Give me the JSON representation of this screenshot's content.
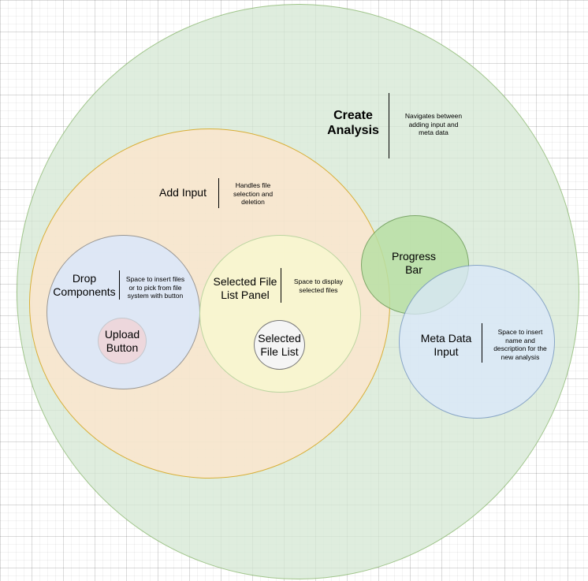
{
  "colors": {
    "create_analysis_fill": "#d5e8d4",
    "create_analysis_stroke": "#82b366",
    "add_input_fill": "#ffe6cc",
    "add_input_stroke": "#d79b00",
    "drop_components_fill": "#dae8fc",
    "selected_panel_fill": "#f9f7d0",
    "selected_list_fill": "#f5f5f5",
    "upload_fill": "#f8cecc",
    "progress_fill": "#b9e0a5",
    "meta_fill": "#dae8fc",
    "meta_stroke": "#6c8ebf"
  },
  "nodes": {
    "create_analysis": {
      "title_lines": [
        "Create",
        "Analysis"
      ],
      "desc_lines": [
        "Navigates between",
        "adding input and",
        "meta data"
      ]
    },
    "add_input": {
      "title_lines": [
        "Add Input"
      ],
      "desc_lines": [
        "Handles file",
        "selection and",
        "deletion"
      ]
    },
    "drop_components": {
      "title_lines": [
        "Drop",
        "Components"
      ],
      "desc_lines": [
        "Space to insert files",
        "or to pick from file",
        "system with button"
      ]
    },
    "upload_button": {
      "title_lines": [
        "Upload",
        "Button"
      ]
    },
    "selected_file_list_panel": {
      "title_lines": [
        "Selected File",
        "List Panel"
      ],
      "desc_lines": [
        "Space to display",
        "selected files"
      ]
    },
    "selected_file_list": {
      "title_lines": [
        "Selected",
        "File List"
      ]
    },
    "progress_bar": {
      "title_lines": [
        "Progress",
        "Bar"
      ]
    },
    "meta_data_input": {
      "title_lines": [
        "Meta Data",
        "Input"
      ],
      "desc_lines": [
        "Space to insert",
        "name and",
        "description for the",
        "new analysis"
      ]
    }
  }
}
